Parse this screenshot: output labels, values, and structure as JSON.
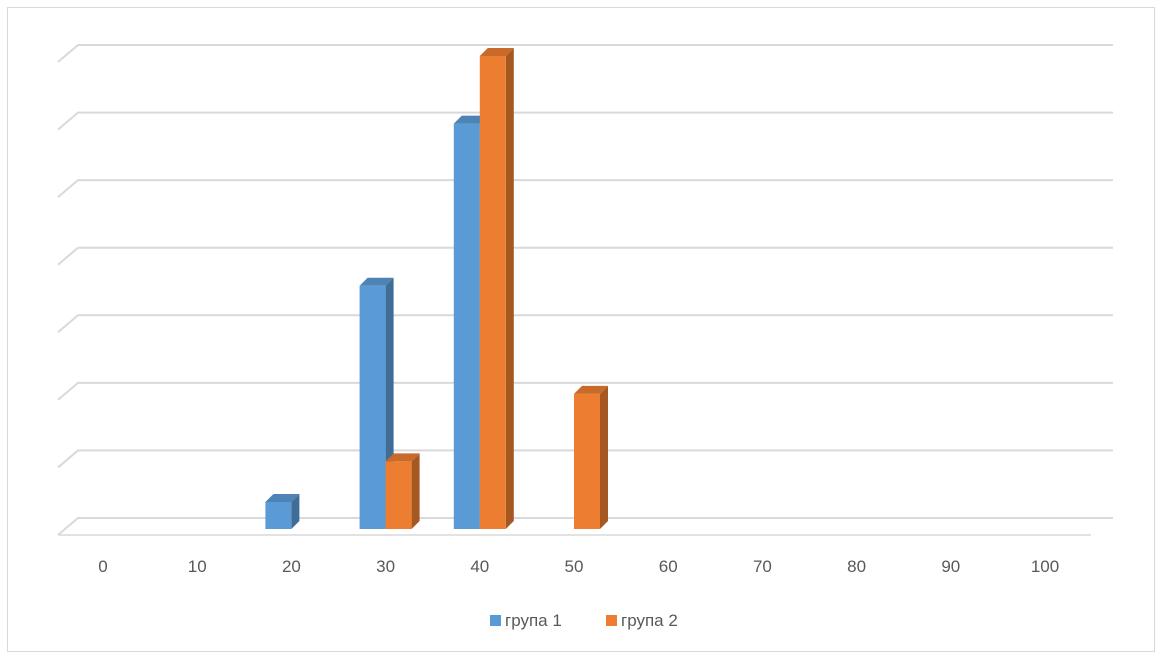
{
  "chart_data": {
    "type": "bar",
    "categories": [
      "0",
      "10",
      "20",
      "30",
      "40",
      "50",
      "60",
      "70",
      "80",
      "90",
      "100"
    ],
    "series": [
      {
        "name": "група 1",
        "color": "#5b9bd5",
        "values": [
          0,
          0,
          0.4,
          3.6,
          6.0,
          0,
          0,
          0,
          0,
          0,
          0
        ]
      },
      {
        "name": "група 2",
        "color": "#ed7d31",
        "values": [
          0,
          0,
          0,
          1.0,
          7.0,
          2.0,
          0,
          0,
          0,
          0,
          0
        ]
      }
    ],
    "ylim": [
      0,
      7
    ],
    "grid": true,
    "legend_position": "bottom",
    "style": "3d-clustered-column"
  }
}
